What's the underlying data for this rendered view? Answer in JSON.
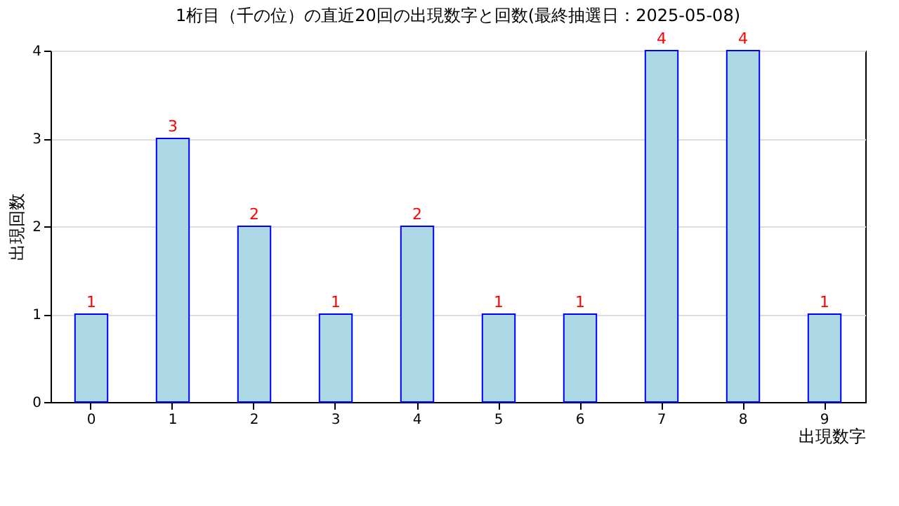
{
  "chart_data": {
    "type": "bar",
    "title": "1桁目（千の位）の直近20回の出現数字と回数(最終抽選日：2025-05-08)",
    "xlabel": "出現数字",
    "ylabel": "出現回数",
    "categories": [
      "0",
      "1",
      "2",
      "3",
      "4",
      "5",
      "6",
      "7",
      "8",
      "9"
    ],
    "values": [
      1,
      3,
      2,
      1,
      2,
      1,
      1,
      4,
      4,
      1
    ],
    "color": "#add8e6",
    "ylim": [
      0,
      4
    ],
    "yticks": [
      0,
      1,
      2,
      3,
      4
    ],
    "grid": "y",
    "data_labels": true
  }
}
